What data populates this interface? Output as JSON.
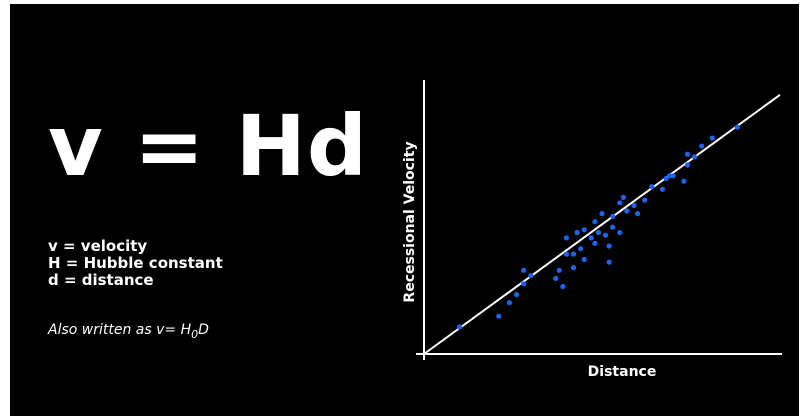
{
  "equation": "v = Hd",
  "definitions": [
    "v = velocity",
    "H = Hubble constant",
    "d = distance"
  ],
  "alt_note": {
    "prefix": "Also written as v= H",
    "subscript": "0",
    "suffix": "D"
  },
  "colors": {
    "background": "#000000",
    "text": "#ffffff",
    "points": "#1e64f0",
    "fit_line": "#ffffff"
  },
  "chart_data": {
    "type": "scatter",
    "xlabel": "Distance",
    "ylabel": "Recessional Velocity",
    "xlim": [
      0,
      100
    ],
    "ylim": [
      0,
      100
    ],
    "grid": false,
    "ticks": "none",
    "points": [
      [
        10,
        10
      ],
      [
        21,
        14
      ],
      [
        24,
        19
      ],
      [
        26,
        22
      ],
      [
        28,
        26
      ],
      [
        28,
        31
      ],
      [
        30,
        29
      ],
      [
        37,
        28
      ],
      [
        39,
        25
      ],
      [
        38,
        31
      ],
      [
        40,
        37
      ],
      [
        40,
        43
      ],
      [
        42,
        32
      ],
      [
        42,
        37
      ],
      [
        43,
        45
      ],
      [
        44,
        39
      ],
      [
        45,
        35
      ],
      [
        45,
        46
      ],
      [
        47,
        43
      ],
      [
        48,
        41
      ],
      [
        48,
        49
      ],
      [
        49,
        45
      ],
      [
        50,
        52
      ],
      [
        51,
        44
      ],
      [
        52,
        40
      ],
      [
        52,
        34
      ],
      [
        53,
        47
      ],
      [
        53,
        51
      ],
      [
        55,
        45
      ],
      [
        55,
        56
      ],
      [
        56,
        58
      ],
      [
        57,
        53
      ],
      [
        59,
        55
      ],
      [
        60,
        52
      ],
      [
        62,
        57
      ],
      [
        64,
        62
      ],
      [
        67,
        61
      ],
      [
        68,
        65
      ],
      [
        69,
        66
      ],
      [
        70,
        66
      ],
      [
        73,
        64
      ],
      [
        74,
        70
      ],
      [
        74,
        74
      ],
      [
        76,
        73
      ],
      [
        78,
        77
      ],
      [
        81,
        80
      ],
      [
        88,
        84
      ]
    ],
    "fit_line": {
      "slope": 0.96,
      "intercept": 0
    }
  }
}
